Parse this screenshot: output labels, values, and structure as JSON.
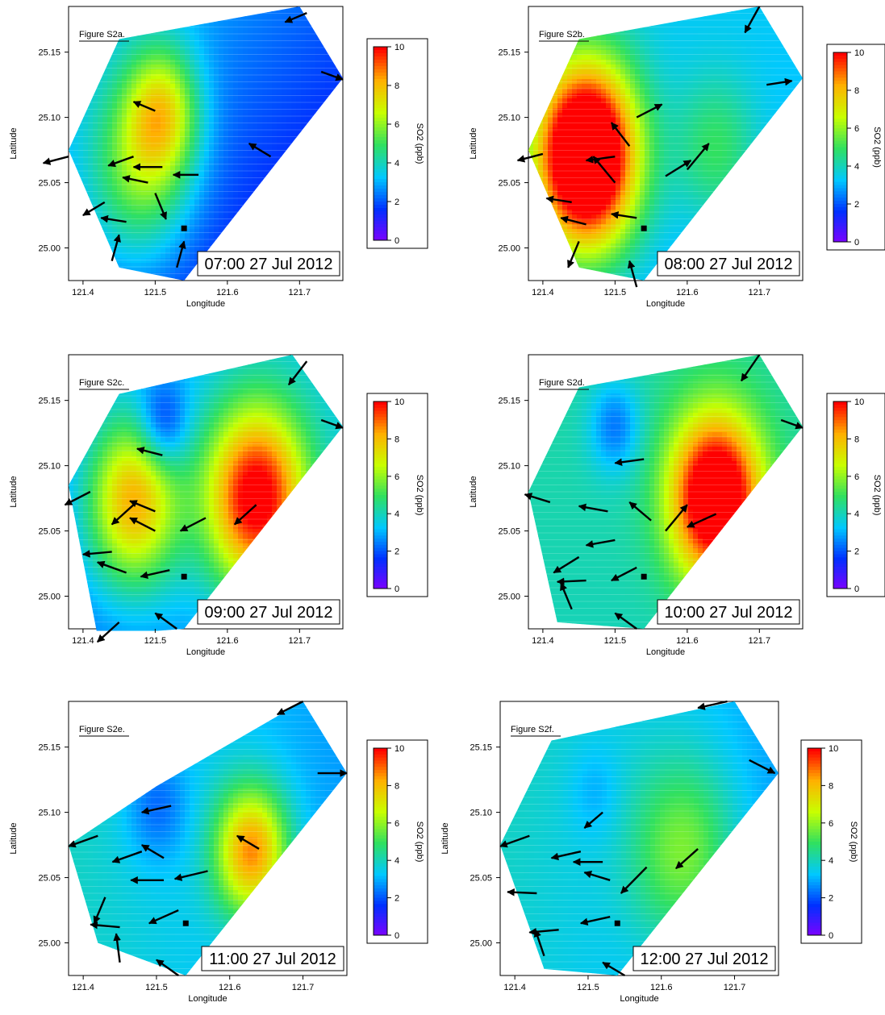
{
  "colors": {
    "colormap": [
      "#8000ff",
      "#0030ff",
      "#00c8ff",
      "#30e060",
      "#c8ff00",
      "#ffb000",
      "#ff0000"
    ],
    "arrow": "#000000",
    "site_marker": "#000000"
  },
  "icons": {
    "wind": "arrow-icon",
    "site": "square-marker-icon"
  },
  "chart_data": [
    {
      "type": "heatmap",
      "label": "Figure S2a.",
      "timestamp": "07:00 27 Jul 2012",
      "xlabel": "Longitude",
      "ylabel": "Latitude",
      "xlim": [
        121.38,
        121.76
      ],
      "ylim": [
        24.975,
        25.185
      ],
      "xticks": [
        121.4,
        121.5,
        121.6,
        121.7
      ],
      "xtick_labels": [
        "121.4",
        "121.5",
        "121.6",
        "121.7"
      ],
      "yticks": [
        25.0,
        25.05,
        25.1,
        25.15
      ],
      "ytick_labels": [
        "25.00",
        "25.05",
        "25.10",
        "25.15"
      ],
      "colorbar": {
        "label": "SO2 (ppb)",
        "min": 0,
        "max": 10,
        "ticks": [
          0,
          2,
          4,
          6,
          8,
          10
        ]
      },
      "site": [
        121.54,
        25.015
      ],
      "domain": [
        [
          121.38,
          25.075
        ],
        [
          121.45,
          25.16
        ],
        [
          121.7,
          25.185
        ],
        [
          121.76,
          25.13
        ],
        [
          121.54,
          24.975
        ],
        [
          121.45,
          24.985
        ]
      ],
      "sources": [
        {
          "x": 121.51,
          "y": 25.105,
          "v": 3.8,
          "s": 0.035
        },
        {
          "x": 121.48,
          "y": 25.06,
          "v": 3.3,
          "s": 0.05
        }
      ],
      "base": 2.2,
      "gradient": {
        "x": -4,
        "y": 6
      },
      "winds": [
        {
          "x": 121.71,
          "y": 25.18,
          "dx": -0.03,
          "dy": -0.007
        },
        {
          "x": 121.73,
          "y": 25.135,
          "dx": 0.03,
          "dy": -0.006
        },
        {
          "x": 121.5,
          "y": 25.105,
          "dx": -0.03,
          "dy": 0.007
        },
        {
          "x": 121.38,
          "y": 25.07,
          "dx": -0.035,
          "dy": -0.005
        },
        {
          "x": 121.66,
          "y": 25.07,
          "dx": -0.03,
          "dy": 0.01
        },
        {
          "x": 121.47,
          "y": 25.07,
          "dx": -0.035,
          "dy": -0.007
        },
        {
          "x": 121.51,
          "y": 25.062,
          "dx": -0.04,
          "dy": 0.0
        },
        {
          "x": 121.56,
          "y": 25.056,
          "dx": -0.035,
          "dy": 0.0
        },
        {
          "x": 121.49,
          "y": 25.05,
          "dx": -0.035,
          "dy": 0.004
        },
        {
          "x": 121.5,
          "y": 25.042,
          "dx": 0.015,
          "dy": -0.02
        },
        {
          "x": 121.43,
          "y": 25.035,
          "dx": -0.03,
          "dy": -0.01
        },
        {
          "x": 121.46,
          "y": 25.02,
          "dx": -0.035,
          "dy": 0.003
        },
        {
          "x": 121.44,
          "y": 24.99,
          "dx": 0.01,
          "dy": 0.02
        },
        {
          "x": 121.53,
          "y": 24.985,
          "dx": 0.01,
          "dy": 0.02
        }
      ]
    },
    {
      "type": "heatmap",
      "label": "Figure S2b.",
      "timestamp": "08:00 27 Jul 2012",
      "xlabel": "Longitude",
      "ylabel": "Latitude",
      "xlim": [
        121.38,
        121.76
      ],
      "ylim": [
        24.975,
        25.185
      ],
      "xticks": [
        121.4,
        121.5,
        121.6,
        121.7
      ],
      "xtick_labels": [
        "121.4",
        "121.5",
        "121.6",
        "121.7"
      ],
      "yticks": [
        25.0,
        25.05,
        25.1,
        25.15
      ],
      "ytick_labels": [
        "25.00",
        "25.05",
        "25.10",
        "25.15"
      ],
      "colorbar": {
        "label": "SO2 (ppb)",
        "min": 0,
        "max": 10,
        "ticks": [
          0,
          2,
          4,
          6,
          8,
          10
        ]
      },
      "site": [
        121.54,
        25.015
      ],
      "domain": [
        [
          121.38,
          25.075
        ],
        [
          121.45,
          25.16
        ],
        [
          121.7,
          25.185
        ],
        [
          121.76,
          25.13
        ],
        [
          121.54,
          24.975
        ],
        [
          121.45,
          24.985
        ]
      ],
      "sources": [
        {
          "x": 121.46,
          "y": 25.07,
          "v": 10.5,
          "s": 0.05
        },
        {
          "x": 121.64,
          "y": 25.075,
          "v": 1.8,
          "s": 0.04
        }
      ],
      "base": 3.2,
      "gradient": {
        "x": 0,
        "y": 2
      },
      "winds": [
        {
          "x": 121.7,
          "y": 25.185,
          "dx": -0.02,
          "dy": -0.02
        },
        {
          "x": 121.71,
          "y": 25.125,
          "dx": 0.035,
          "dy": 0.003
        },
        {
          "x": 121.53,
          "y": 25.1,
          "dx": 0.035,
          "dy": 0.01
        },
        {
          "x": 121.4,
          "y": 25.072,
          "dx": -0.035,
          "dy": -0.005
        },
        {
          "x": 121.5,
          "y": 25.07,
          "dx": -0.04,
          "dy": -0.003
        },
        {
          "x": 121.48,
          "y": 25.075,
          "dx": 0.0,
          "dy": 0.0
        },
        {
          "x": 121.52,
          "y": 25.078,
          "dx": -0.025,
          "dy": 0.018
        },
        {
          "x": 121.5,
          "y": 25.05,
          "dx": -0.03,
          "dy": 0.02
        },
        {
          "x": 121.57,
          "y": 25.055,
          "dx": 0.035,
          "dy": 0.012
        },
        {
          "x": 121.6,
          "y": 25.06,
          "dx": 0.03,
          "dy": 0.02
        },
        {
          "x": 121.44,
          "y": 25.035,
          "dx": -0.035,
          "dy": 0.003
        },
        {
          "x": 121.46,
          "y": 25.018,
          "dx": -0.035,
          "dy": 0.005
        },
        {
          "x": 121.53,
          "y": 25.023,
          "dx": -0.035,
          "dy": 0.003
        },
        {
          "x": 121.45,
          "y": 25.005,
          "dx": -0.015,
          "dy": -0.02
        },
        {
          "x": 121.53,
          "y": 24.97,
          "dx": -0.01,
          "dy": 0.02
        }
      ]
    },
    {
      "type": "heatmap",
      "label": "Figure S2c.",
      "timestamp": "09:00 27 Jul 2012",
      "xlabel": "Longitude",
      "ylabel": "Latitude",
      "xlim": [
        121.38,
        121.76
      ],
      "ylim": [
        24.975,
        25.185
      ],
      "xticks": [
        121.4,
        121.5,
        121.6,
        121.7
      ],
      "xtick_labels": [
        "121.4",
        "121.5",
        "121.6",
        "121.7"
      ],
      "yticks": [
        25.0,
        25.05,
        25.1,
        25.15
      ],
      "ytick_labels": [
        "25.00",
        "25.05",
        "25.10",
        "25.15"
      ],
      "colorbar": {
        "label": "SO2 (ppb)",
        "min": 0,
        "max": 10,
        "ticks": [
          0,
          2,
          4,
          6,
          8,
          10
        ]
      },
      "site": [
        121.54,
        25.015
      ],
      "domain": [
        [
          121.38,
          25.085
        ],
        [
          121.45,
          25.155
        ],
        [
          121.69,
          25.185
        ],
        [
          121.76,
          25.13
        ],
        [
          121.54,
          24.975
        ],
        [
          121.42,
          24.97
        ]
      ],
      "sources": [
        {
          "x": 121.64,
          "y": 25.075,
          "v": 7.5,
          "s": 0.05
        },
        {
          "x": 121.47,
          "y": 25.072,
          "v": 5.5,
          "s": 0.045
        },
        {
          "x": 121.51,
          "y": 25.13,
          "v": -2.2,
          "s": 0.025
        }
      ],
      "base": 3.0,
      "gradient": {
        "x": 2,
        "y": 2
      },
      "winds": [
        {
          "x": 121.71,
          "y": 25.18,
          "dx": -0.025,
          "dy": -0.018
        },
        {
          "x": 121.73,
          "y": 25.135,
          "dx": 0.03,
          "dy": -0.006
        },
        {
          "x": 121.51,
          "y": 25.108,
          "dx": -0.035,
          "dy": 0.005
        },
        {
          "x": 121.41,
          "y": 25.08,
          "dx": -0.035,
          "dy": -0.01
        },
        {
          "x": 121.5,
          "y": 25.065,
          "dx": -0.035,
          "dy": 0.008
        },
        {
          "x": 121.47,
          "y": 25.07,
          "dx": -0.03,
          "dy": -0.015
        },
        {
          "x": 121.5,
          "y": 25.05,
          "dx": -0.035,
          "dy": 0.01
        },
        {
          "x": 121.57,
          "y": 25.06,
          "dx": -0.035,
          "dy": -0.01
        },
        {
          "x": 121.64,
          "y": 25.07,
          "dx": -0.03,
          "dy": -0.015
        },
        {
          "x": 121.44,
          "y": 25.034,
          "dx": -0.04,
          "dy": -0.002
        },
        {
          "x": 121.46,
          "y": 25.018,
          "dx": -0.04,
          "dy": 0.008
        },
        {
          "x": 121.52,
          "y": 25.02,
          "dx": -0.04,
          "dy": -0.005
        },
        {
          "x": 121.45,
          "y": 24.98,
          "dx": -0.03,
          "dy": -0.015
        },
        {
          "x": 121.53,
          "y": 24.975,
          "dx": -0.03,
          "dy": 0.012
        }
      ]
    },
    {
      "type": "heatmap",
      "label": "Figure S2d.",
      "timestamp": "10:00 27 Jul 2012",
      "xlabel": "Longitude",
      "ylabel": "Latitude",
      "xlim": [
        121.38,
        121.76
      ],
      "ylim": [
        24.975,
        25.185
      ],
      "xticks": [
        121.4,
        121.5,
        121.6,
        121.7
      ],
      "xtick_labels": [
        "121.4",
        "121.5",
        "121.6",
        "121.7"
      ],
      "yticks": [
        25.0,
        25.05,
        25.1,
        25.15
      ],
      "ytick_labels": [
        "25.00",
        "25.05",
        "25.10",
        "25.15"
      ],
      "colorbar": {
        "label": "SO2 (ppb)",
        "min": 0,
        "max": 10,
        "ticks": [
          0,
          2,
          4,
          6,
          8,
          10
        ]
      },
      "site": [
        121.54,
        25.015
      ],
      "domain": [
        [
          121.38,
          25.08
        ],
        [
          121.45,
          25.16
        ],
        [
          121.7,
          25.185
        ],
        [
          121.76,
          25.13
        ],
        [
          121.54,
          24.975
        ],
        [
          121.42,
          24.98
        ]
      ],
      "sources": [
        {
          "x": 121.64,
          "y": 25.075,
          "v": 8.0,
          "s": 0.045
        },
        {
          "x": 121.5,
          "y": 25.13,
          "v": -1.8,
          "s": 0.025
        }
      ],
      "base": 4.2,
      "gradient": {
        "x": 0,
        "y": 1
      },
      "winds": [
        {
          "x": 121.7,
          "y": 25.185,
          "dx": -0.025,
          "dy": -0.02
        },
        {
          "x": 121.73,
          "y": 25.135,
          "dx": 0.03,
          "dy": -0.006
        },
        {
          "x": 121.54,
          "y": 25.105,
          "dx": -0.04,
          "dy": -0.003
        },
        {
          "x": 121.41,
          "y": 25.072,
          "dx": -0.035,
          "dy": 0.006
        },
        {
          "x": 121.49,
          "y": 25.065,
          "dx": -0.04,
          "dy": 0.004
        },
        {
          "x": 121.55,
          "y": 25.058,
          "dx": -0.03,
          "dy": 0.014
        },
        {
          "x": 121.5,
          "y": 25.043,
          "dx": -0.04,
          "dy": -0.004
        },
        {
          "x": 121.57,
          "y": 25.05,
          "dx": 0.03,
          "dy": 0.02
        },
        {
          "x": 121.64,
          "y": 25.063,
          "dx": -0.04,
          "dy": -0.01
        },
        {
          "x": 121.45,
          "y": 25.03,
          "dx": -0.035,
          "dy": -0.012
        },
        {
          "x": 121.46,
          "y": 25.012,
          "dx": -0.04,
          "dy": -0.001
        },
        {
          "x": 121.53,
          "y": 25.022,
          "dx": -0.035,
          "dy": -0.01
        },
        {
          "x": 121.44,
          "y": 24.99,
          "dx": -0.015,
          "dy": 0.02
        },
        {
          "x": 121.53,
          "y": 24.975,
          "dx": -0.03,
          "dy": 0.012
        }
      ]
    },
    {
      "type": "heatmap",
      "label": "Figure S2e.",
      "timestamp": "11:00 27 Jul 2012",
      "xlabel": "Longitude",
      "ylabel": "Latitude",
      "xlim": [
        121.38,
        121.76
      ],
      "ylim": [
        24.975,
        25.185
      ],
      "xticks": [
        121.4,
        121.5,
        121.6,
        121.7
      ],
      "xtick_labels": [
        "121.4",
        "121.5",
        "121.6",
        "121.7"
      ],
      "yticks": [
        25.0,
        25.05,
        25.1,
        25.15
      ],
      "ytick_labels": [
        "25.00",
        "25.05",
        "25.10",
        "25.15"
      ],
      "colorbar": {
        "label": "SO2 (ppb)",
        "min": 0,
        "max": 10,
        "ticks": [
          0,
          2,
          4,
          6,
          8,
          10
        ]
      },
      "site": [
        121.54,
        25.015
      ],
      "domain": [
        [
          121.38,
          25.075
        ],
        [
          121.5,
          25.12
        ],
        [
          121.7,
          25.185
        ],
        [
          121.76,
          25.13
        ],
        [
          121.54,
          24.975
        ],
        [
          121.42,
          25.0
        ]
      ],
      "sources": [
        {
          "x": 121.63,
          "y": 25.07,
          "v": 5.5,
          "s": 0.035
        },
        {
          "x": 121.5,
          "y": 25.105,
          "v": -1.3,
          "s": 0.03
        }
      ],
      "base": 3.4,
      "gradient": {
        "x": -3,
        "y": 0
      },
      "winds": [
        {
          "x": 121.7,
          "y": 25.185,
          "dx": -0.035,
          "dy": -0.01
        },
        {
          "x": 121.72,
          "y": 25.13,
          "dx": 0.04,
          "dy": 0.0
        },
        {
          "x": 121.52,
          "y": 25.105,
          "dx": -0.04,
          "dy": -0.005
        },
        {
          "x": 121.42,
          "y": 25.082,
          "dx": -0.04,
          "dy": -0.008
        },
        {
          "x": 121.51,
          "y": 25.065,
          "dx": -0.03,
          "dy": 0.01
        },
        {
          "x": 121.48,
          "y": 25.07,
          "dx": -0.04,
          "dy": -0.008
        },
        {
          "x": 121.51,
          "y": 25.048,
          "dx": -0.045,
          "dy": 0.0
        },
        {
          "x": 121.57,
          "y": 25.055,
          "dx": -0.045,
          "dy": -0.006
        },
        {
          "x": 121.64,
          "y": 25.072,
          "dx": -0.03,
          "dy": 0.01
        },
        {
          "x": 121.43,
          "y": 25.035,
          "dx": -0.015,
          "dy": -0.02
        },
        {
          "x": 121.45,
          "y": 25.012,
          "dx": -0.04,
          "dy": 0.002
        },
        {
          "x": 121.53,
          "y": 25.025,
          "dx": -0.04,
          "dy": -0.01
        },
        {
          "x": 121.45,
          "y": 24.985,
          "dx": -0.005,
          "dy": 0.022
        },
        {
          "x": 121.53,
          "y": 24.975,
          "dx": -0.03,
          "dy": 0.012
        }
      ]
    },
    {
      "type": "heatmap",
      "label": "Figure S2f.",
      "timestamp": "12:00 27 Jul 2012",
      "xlabel": "Longitude",
      "ylabel": "Latitude",
      "xlim": [
        121.38,
        121.76
      ],
      "ylim": [
        24.975,
        25.185
      ],
      "xticks": [
        121.4,
        121.5,
        121.6,
        121.7
      ],
      "xtick_labels": [
        "121.4",
        "121.5",
        "121.6",
        "121.7"
      ],
      "yticks": [
        25.0,
        25.05,
        25.1,
        25.15
      ],
      "ytick_labels": [
        "25.00",
        "25.05",
        "25.10",
        "25.15"
      ],
      "colorbar": {
        "label": "SO2 (ppb)",
        "min": 0,
        "max": 10,
        "ticks": [
          0,
          2,
          4,
          6,
          8,
          10
        ]
      },
      "site": [
        121.54,
        25.015
      ],
      "domain": [
        [
          121.38,
          25.075
        ],
        [
          121.45,
          25.155
        ],
        [
          121.7,
          25.185
        ],
        [
          121.76,
          25.13
        ],
        [
          121.54,
          24.975
        ],
        [
          121.44,
          24.98
        ]
      ],
      "sources": [
        {
          "x": 121.63,
          "y": 25.07,
          "v": 2.6,
          "s": 0.05
        },
        {
          "x": 121.51,
          "y": 25.115,
          "v": -0.6,
          "s": 0.025
        }
      ],
      "base": 3.4,
      "gradient": {
        "x": -3,
        "y": 1
      },
      "winds": [
        {
          "x": 121.69,
          "y": 25.185,
          "dx": -0.04,
          "dy": -0.005
        },
        {
          "x": 121.72,
          "y": 25.14,
          "dx": 0.035,
          "dy": -0.01
        },
        {
          "x": 121.52,
          "y": 25.1,
          "dx": -0.025,
          "dy": -0.012
        },
        {
          "x": 121.42,
          "y": 25.082,
          "dx": -0.04,
          "dy": -0.008
        },
        {
          "x": 121.49,
          "y": 25.07,
          "dx": -0.04,
          "dy": -0.005
        },
        {
          "x": 121.52,
          "y": 25.062,
          "dx": -0.04,
          "dy": 0.0
        },
        {
          "x": 121.53,
          "y": 25.048,
          "dx": -0.035,
          "dy": 0.006
        },
        {
          "x": 121.58,
          "y": 25.058,
          "dx": -0.035,
          "dy": -0.02
        },
        {
          "x": 121.65,
          "y": 25.072,
          "dx": -0.03,
          "dy": -0.015
        },
        {
          "x": 121.43,
          "y": 25.038,
          "dx": -0.04,
          "dy": 0.001
        },
        {
          "x": 121.46,
          "y": 25.01,
          "dx": -0.04,
          "dy": -0.002
        },
        {
          "x": 121.53,
          "y": 25.02,
          "dx": -0.04,
          "dy": -0.005
        },
        {
          "x": 121.44,
          "y": 24.99,
          "dx": -0.012,
          "dy": 0.02
        },
        {
          "x": 121.55,
          "y": 24.975,
          "dx": -0.03,
          "dy": 0.01
        }
      ]
    }
  ]
}
